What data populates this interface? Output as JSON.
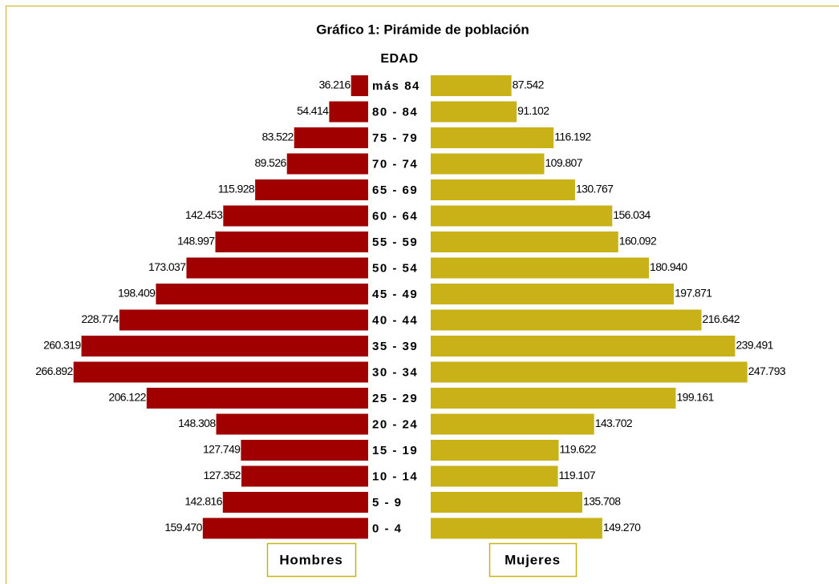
{
  "chart_data": {
    "type": "pyramid",
    "title": "Gráfico 1: Pirámide de población",
    "category_axis_label": "EDAD",
    "categories": [
      "más 84",
      "80 - 84",
      "75 - 79",
      "70 - 74",
      "65 - 69",
      "60 - 64",
      "55 - 59",
      "50 - 54",
      "45 - 49",
      "40 - 44",
      "35 - 39",
      "30 - 34",
      "25 - 29",
      "20 - 24",
      "15 - 19",
      "10 - 14",
      "5 - 9",
      "0 - 4"
    ],
    "series": [
      {
        "name": "Hombres",
        "color": "#a00000",
        "side": "left",
        "values": [
          36216,
          54414,
          83522,
          89526,
          115928,
          142453,
          148997,
          173037,
          198409,
          228774,
          260319,
          266892,
          206122,
          148308,
          127749,
          127352,
          142816,
          159470
        ],
        "value_labels": [
          "36.216",
          "54.414",
          "83.522",
          "89.526",
          "115.928",
          "142.453",
          "148.997",
          "173.037",
          "198.409",
          "228.774",
          "260.319",
          "266.892",
          "206.122",
          "148.308",
          "127.749",
          "127.352",
          "142.816",
          "159.470"
        ]
      },
      {
        "name": "Mujeres",
        "color": "#c9b218",
        "side": "right",
        "values": [
          87542,
          91102,
          116192,
          109807,
          130767,
          156034,
          160092,
          180940,
          197871,
          216642,
          239491,
          247793,
          199161,
          143702,
          119622,
          119107,
          135708,
          149270
        ],
        "value_labels": [
          "87.542",
          "91.102",
          "116.192",
          "109.807",
          "130.767",
          "156.034",
          "160.092",
          "180.940",
          "197.871",
          "216.642",
          "239.491",
          "247.793",
          "199.161",
          "143.702",
          "119.622",
          "119.107",
          "135.708",
          "149.270"
        ]
      }
    ]
  }
}
